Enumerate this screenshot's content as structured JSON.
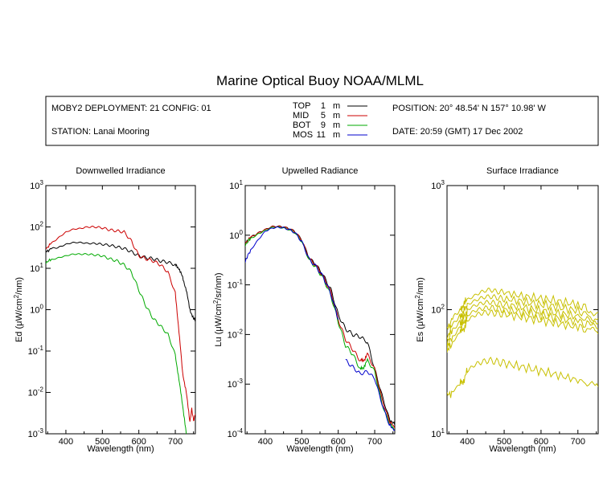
{
  "title": "Marine Optical Buoy NOAA/MLML",
  "header": {
    "deployment": "MOBY2 DEPLOYMENT: 21 CONFIG: 01",
    "station": "STATION: Lanai Mooring",
    "position": "POSITION: 20° 48.54' N   157° 10.98' W",
    "date": "DATE: 20:59 (GMT) 17 Dec 2002"
  },
  "legend": [
    {
      "name": "TOP",
      "depth": "1",
      "unit": "m",
      "color": "#000000"
    },
    {
      "name": "MID",
      "depth": "5",
      "unit": "m",
      "color": "#cc0000"
    },
    {
      "name": "BOT",
      "depth": "9",
      "unit": "m",
      "color": "#00aa00"
    },
    {
      "name": "MOS",
      "depth": "11",
      "unit": "m",
      "color": "#0000cc"
    }
  ],
  "chart_data": [
    {
      "type": "line",
      "title": "Downwelled Irradiance",
      "xlabel": "Wavelength (nm)",
      "ylabel_main": "Ed  (",
      "ylabel_mu": "μ",
      "ylabel_unit": "W/cm",
      "ylabel_sup": "2",
      "ylabel_end": "/nm)",
      "xlim": [
        345,
        755
      ],
      "ylim": [
        0.001,
        1000
      ],
      "yscale": "log",
      "xticks": [
        "400",
        "500",
        "600",
        "700"
      ],
      "yticks": [
        {
          "base": "10",
          "exp": "-3"
        },
        {
          "base": "10",
          "exp": "-2"
        },
        {
          "base": "10",
          "exp": "-1"
        },
        {
          "base": "10",
          "exp": "0"
        },
        {
          "base": "10",
          "exp": "1"
        },
        {
          "base": "10",
          "exp": "2"
        },
        {
          "base": "10",
          "exp": "3"
        }
      ],
      "series": [
        {
          "name": "TOP",
          "color": "#000000",
          "x": [
            345,
            360,
            380,
            400,
            420,
            440,
            460,
            480,
            500,
            520,
            540,
            560,
            580,
            600,
            620,
            640,
            660,
            680,
            700,
            710,
            720,
            730,
            740,
            750,
            755
          ],
          "y": [
            25,
            30,
            32,
            38,
            42,
            42,
            40,
            40,
            38,
            36,
            33,
            30,
            25,
            20,
            18,
            17,
            15,
            14,
            12,
            10,
            6,
            3,
            1.0,
            0.6,
            0.55
          ]
        },
        {
          "name": "MID",
          "color": "#cc0000",
          "x": [
            345,
            360,
            380,
            400,
            420,
            440,
            460,
            480,
            500,
            520,
            540,
            560,
            580,
            600,
            620,
            640,
            660,
            680,
            700,
            710,
            720,
            730,
            740,
            745,
            750,
            755
          ],
          "y": [
            30,
            40,
            55,
            75,
            88,
            92,
            100,
            100,
            95,
            85,
            80,
            75,
            45,
            20,
            17,
            15,
            12,
            8,
            2.5,
            0.3,
            0.03,
            0.01,
            0.002,
            0.004,
            0.002,
            0.003
          ]
        },
        {
          "name": "BOT",
          "color": "#00aa00",
          "x": [
            345,
            360,
            380,
            400,
            420,
            440,
            460,
            480,
            500,
            520,
            540,
            560,
            580,
            600,
            620,
            640,
            660,
            680,
            700,
            710,
            720,
            730
          ],
          "y": [
            14,
            16,
            18,
            20,
            22,
            22,
            22,
            21,
            20,
            17,
            15,
            12,
            8,
            3,
            1.2,
            0.6,
            0.4,
            0.25,
            0.08,
            0.02,
            0.005,
            0.001
          ]
        }
      ]
    },
    {
      "type": "line",
      "title": "Upwelled Radiance",
      "xlabel": "Wavelength (nm)",
      "ylabel_main": "Lu  (",
      "ylabel_mu": "μ",
      "ylabel_unit": "W/cm",
      "ylabel_sup": "2",
      "ylabel_end": "/sr/nm)",
      "xlim": [
        345,
        755
      ],
      "ylim": [
        0.0001,
        10
      ],
      "yscale": "log",
      "xticks": [
        "400",
        "500",
        "600",
        "700"
      ],
      "yticks": [
        {
          "base": "10",
          "exp": "-4"
        },
        {
          "base": "10",
          "exp": "-3"
        },
        {
          "base": "10",
          "exp": "-2"
        },
        {
          "base": "10",
          "exp": "-1"
        },
        {
          "base": "10",
          "exp": "0"
        },
        {
          "base": "10",
          "exp": "1"
        }
      ],
      "series": [
        {
          "name": "TOP",
          "color": "#000000",
          "x": [
            345,
            360,
            380,
            400,
            420,
            440,
            460,
            480,
            500,
            520,
            540,
            560,
            580,
            600,
            620,
            640,
            660,
            680,
            700,
            720,
            740,
            755
          ],
          "y": [
            0.7,
            0.9,
            1.1,
            1.3,
            1.5,
            1.5,
            1.4,
            1.2,
            0.8,
            0.35,
            0.25,
            0.15,
            0.08,
            0.025,
            0.013,
            0.01,
            0.009,
            0.007,
            0.002,
            0.0006,
            0.0002,
            0.00015
          ]
        },
        {
          "name": "MID",
          "color": "#cc0000",
          "x": [
            345,
            360,
            380,
            400,
            420,
            440,
            460,
            480,
            500,
            520,
            540,
            560,
            580,
            600,
            620,
            640,
            660,
            670,
            680,
            700,
            720,
            740,
            755
          ],
          "y": [
            0.7,
            0.9,
            1.1,
            1.3,
            1.5,
            1.5,
            1.4,
            1.2,
            0.8,
            0.34,
            0.24,
            0.14,
            0.07,
            0.02,
            0.008,
            0.005,
            0.003,
            0.003,
            0.004,
            0.002,
            0.0005,
            0.00018,
            0.00013
          ]
        },
        {
          "name": "BOT",
          "color": "#00aa00",
          "x": [
            345,
            360,
            380,
            400,
            420,
            440,
            460,
            480,
            500,
            520,
            540,
            560,
            580,
            600,
            620,
            640,
            660,
            670,
            680,
            700,
            720,
            740,
            755
          ],
          "y": [
            0.65,
            0.85,
            1.05,
            1.25,
            1.45,
            1.45,
            1.35,
            1.15,
            0.75,
            0.32,
            0.22,
            0.13,
            0.06,
            0.018,
            0.006,
            0.004,
            0.002,
            0.0022,
            0.003,
            0.0018,
            0.0004,
            0.00016,
            0.00012
          ]
        },
        {
          "name": "MOS",
          "color": "#0000cc",
          "x": [
            345,
            360,
            380,
            400,
            420,
            440,
            460,
            480,
            500,
            520,
            540,
            560,
            580,
            600
          ],
          "y": [
            0.3,
            0.5,
            0.8,
            1.2,
            1.4,
            1.45,
            1.35,
            1.15,
            0.75,
            0.33,
            0.23,
            0.14,
            0.065,
            0.02
          ]
        },
        {
          "name": "MOS",
          "color": "#0000cc",
          "x": [
            620,
            640,
            660,
            680,
            700,
            720,
            740,
            755
          ],
          "y": [
            0.003,
            0.0022,
            0.0016,
            0.0018,
            0.0013,
            0.0004,
            0.00015,
            0.00012
          ]
        }
      ]
    },
    {
      "type": "line",
      "title": "Surface Irradiance",
      "xlabel": "Wavelength (nm)",
      "ylabel_main": "Es  (",
      "ylabel_mu": "μ",
      "ylabel_unit": "W/cm",
      "ylabel_sup": "2",
      "ylabel_end": "/nm)",
      "xlim": [
        345,
        755
      ],
      "ylim": [
        10,
        1000
      ],
      "yscale": "log",
      "xticks": [
        "400",
        "500",
        "600",
        "700"
      ],
      "yticks": [
        {
          "base": "10",
          "exp": "1"
        },
        {
          "base": "10",
          "exp": "2"
        },
        {
          "base": "10",
          "exp": "3"
        }
      ],
      "color": "#c8c000",
      "series": [
        {
          "name": "",
          "color": "#c8c000",
          "x": [
            345,
            360,
            380,
            390,
            400,
            420,
            440,
            460,
            480,
            500,
            540,
            580,
            620,
            660,
            700,
            730,
            755
          ],
          "y": [
            70,
            85,
            100,
            110,
            120,
            130,
            140,
            145,
            140,
            138,
            130,
            125,
            120,
            115,
            110,
            100,
            95
          ]
        },
        {
          "name": "",
          "color": "#c8c000",
          "x": [
            345,
            360,
            380,
            390,
            400,
            420,
            440,
            460,
            480,
            500,
            540,
            580,
            620,
            660,
            700,
            730,
            755
          ],
          "y": [
            60,
            75,
            90,
            95,
            110,
            118,
            125,
            128,
            125,
            122,
            118,
            112,
            108,
            103,
            98,
            90,
            85
          ]
        },
        {
          "name": "",
          "color": "#c8c000",
          "x": [
            345,
            360,
            380,
            390,
            400,
            420,
            440,
            460,
            480,
            500,
            540,
            580,
            620,
            660,
            700,
            730,
            755
          ],
          "y": [
            55,
            68,
            80,
            85,
            100,
            108,
            113,
            115,
            112,
            110,
            106,
            100,
            96,
            92,
            88,
            82,
            78
          ]
        },
        {
          "name": "",
          "color": "#c8c000",
          "x": [
            345,
            360,
            380,
            390,
            400,
            420,
            440,
            460,
            480,
            500,
            540,
            580,
            620,
            660,
            700,
            730,
            755
          ],
          "y": [
            50,
            60,
            72,
            78,
            90,
            98,
            102,
            104,
            102,
            100,
            96,
            92,
            88,
            84,
            80,
            75,
            70
          ]
        },
        {
          "name": "",
          "color": "#c8c000",
          "x": [
            345,
            360,
            380,
            390,
            400,
            420,
            440,
            460,
            480,
            500,
            540,
            580,
            620,
            660,
            700,
            730,
            755
          ],
          "y": [
            45,
            55,
            65,
            70,
            82,
            90,
            94,
            95,
            93,
            92,
            88,
            84,
            80,
            76,
            72,
            68,
            64
          ]
        },
        {
          "name": "",
          "color": "#c8c000",
          "x": [
            345,
            360,
            380,
            390,
            400,
            420,
            440,
            460,
            480,
            500,
            540,
            580,
            620,
            660,
            700,
            730,
            755
          ],
          "y": [
            20,
            22,
            25,
            27,
            32,
            36,
            38,
            39,
            38,
            37,
            35,
            33,
            31,
            29,
            27,
            25,
            24
          ]
        }
      ]
    }
  ]
}
